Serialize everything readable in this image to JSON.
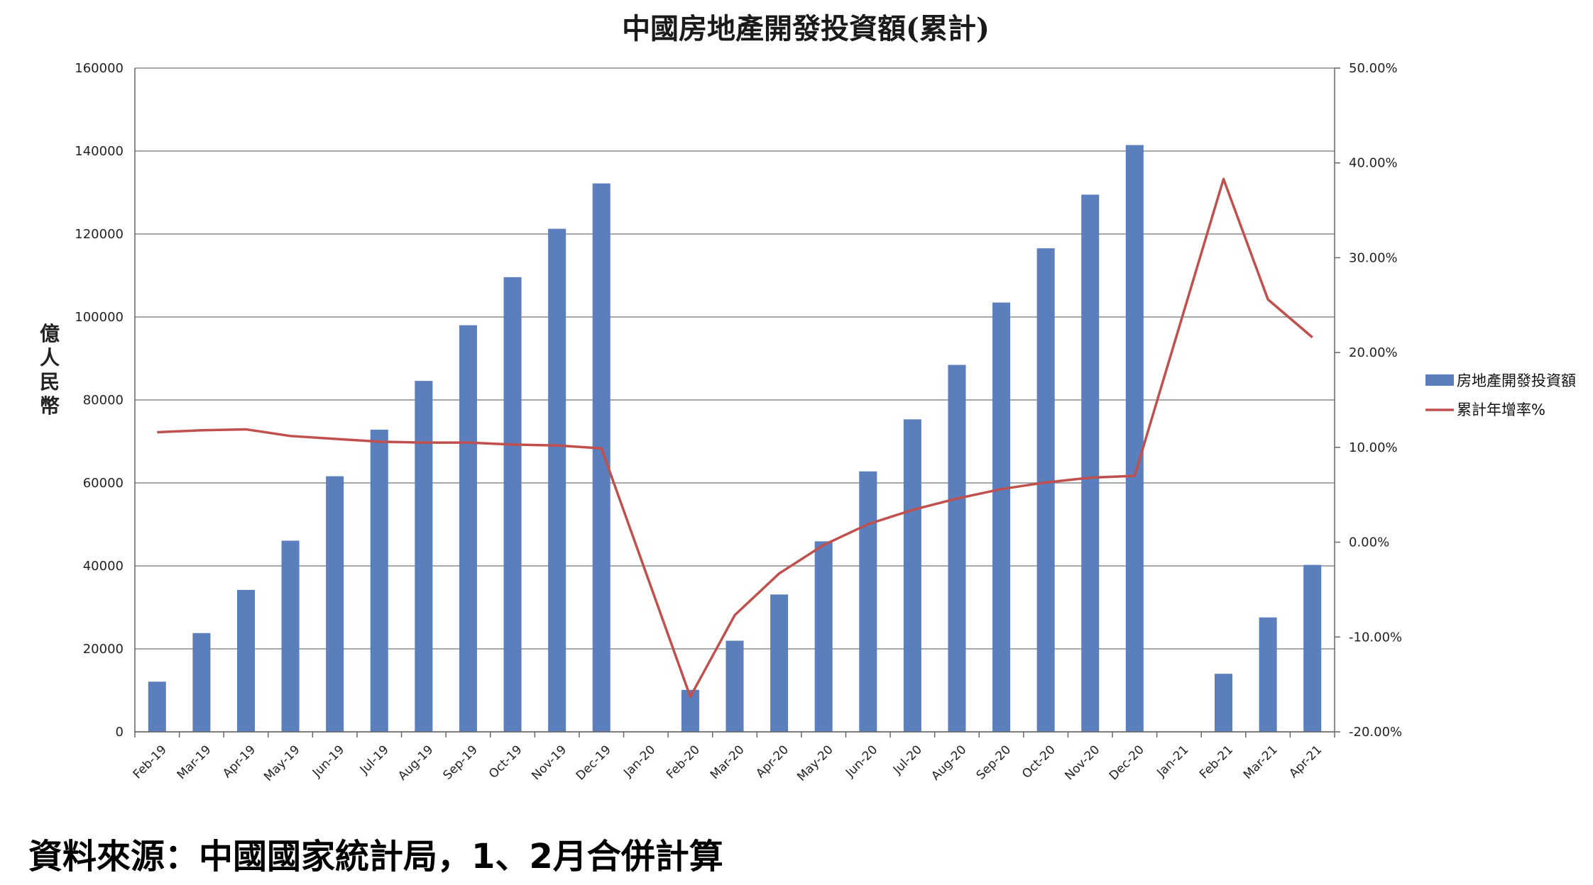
{
  "chart_data": {
    "type": "bar",
    "title": "中國房地產開發投資額(累計)",
    "ylabel": "億人民幣",
    "ylim": [
      0,
      160000
    ],
    "y_ticks": [
      "0",
      "20000",
      "40000",
      "60000",
      "80000",
      "100000",
      "120000",
      "140000",
      "160000"
    ],
    "y2lim": [
      -20,
      50
    ],
    "y2_ticks": [
      "-20.00%",
      "-10.00%",
      "0.00%",
      "10.00%",
      "20.00%",
      "30.00%",
      "40.00%",
      "50.00%"
    ],
    "grid": true,
    "legend_position": "right",
    "categories": [
      "Feb-19",
      "Mar-19",
      "Apr-19",
      "May-19",
      "Jun-19",
      "Jul-19",
      "Aug-19",
      "Sep-19",
      "Oct-19",
      "Nov-19",
      "Dec-19",
      "Jan-20",
      "Feb-20",
      "Mar-20",
      "Apr-20",
      "May-20",
      "Jun-20",
      "Jul-20",
      "Aug-20",
      "Sep-20",
      "Oct-20",
      "Nov-20",
      "Dec-20",
      "Jan-21",
      "Feb-21",
      "Mar-21",
      "Apr-21"
    ],
    "series": [
      {
        "name": "房地產開發投資額",
        "type": "bar",
        "axis": "left",
        "color": "#5b7fbd",
        "values": [
          12090,
          23803,
          34217,
          46075,
          61609,
          72843,
          84589,
          98008,
          109603,
          121265,
          132194,
          null,
          10115,
          21963,
          33103,
          45920,
          62780,
          75325,
          88454,
          103484,
          116556,
          129492,
          141443,
          null,
          13986,
          27576,
          40240
        ]
      },
      {
        "name": "累計年增率%",
        "type": "line",
        "axis": "right",
        "color": "#c0504d",
        "values": [
          11.6,
          11.8,
          11.9,
          11.2,
          10.9,
          10.6,
          10.5,
          10.5,
          10.3,
          10.2,
          9.9,
          null,
          -16.3,
          -7.7,
          -3.3,
          -0.3,
          1.9,
          3.4,
          4.6,
          5.6,
          6.3,
          6.8,
          7.0,
          null,
          38.3,
          25.6,
          21.6
        ]
      }
    ]
  },
  "footer": {
    "source": "資料來源：中國國家統計局，1、2月合併計算"
  }
}
